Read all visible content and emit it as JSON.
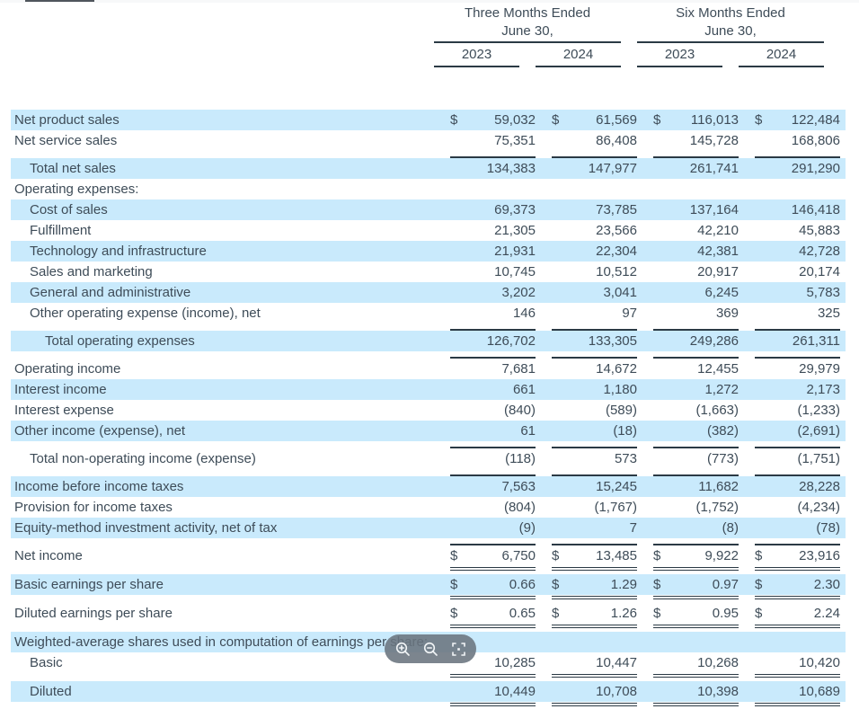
{
  "colors": {
    "row_shade": "#c9eafc",
    "text": "#3e4c58",
    "rule": "#2b3a45",
    "pill_bg": "rgba(106,116,126,0.88)",
    "pill_icon": "#f2f5f7"
  },
  "header": {
    "groups": [
      {
        "line1": "Three Months Ended",
        "line2": "June 30,",
        "years": [
          "2023",
          "2024"
        ]
      },
      {
        "line1": "Six Months Ended",
        "line2": "June 30,",
        "years": [
          "2023",
          "2024"
        ]
      }
    ]
  },
  "zoom_controls": {
    "buttons": [
      {
        "name": "zoom-in"
      },
      {
        "name": "zoom-out"
      },
      {
        "name": "fit-to-width"
      }
    ]
  },
  "table": {
    "rows": [
      {
        "type": "data",
        "label": "Net product sales",
        "indent": 0,
        "shaded": true,
        "dollar": true,
        "values": [
          "59,032",
          "61,569",
          "116,013",
          "122,484"
        ]
      },
      {
        "type": "data",
        "label": "Net service sales",
        "indent": 0,
        "shaded": false,
        "dollar": false,
        "values": [
          "75,351",
          "86,408",
          "145,728",
          "168,806"
        ]
      },
      {
        "type": "rule",
        "style": "single"
      },
      {
        "type": "data",
        "label": "Total net sales",
        "indent": 1,
        "shaded": true,
        "dollar": false,
        "values": [
          "134,383",
          "147,977",
          "261,741",
          "291,290"
        ]
      },
      {
        "type": "data",
        "label": "Operating expenses:",
        "indent": 0,
        "shaded": false,
        "dollar": false,
        "values": [
          "",
          "",
          "",
          ""
        ]
      },
      {
        "type": "data",
        "label": "Cost of sales",
        "indent": 1,
        "shaded": true,
        "dollar": false,
        "values": [
          "69,373",
          "73,785",
          "137,164",
          "146,418"
        ]
      },
      {
        "type": "data",
        "label": "Fulfillment",
        "indent": 1,
        "shaded": false,
        "dollar": false,
        "values": [
          "21,305",
          "23,566",
          "42,210",
          "45,883"
        ]
      },
      {
        "type": "data",
        "label": "Technology and infrastructure",
        "indent": 1,
        "shaded": true,
        "dollar": false,
        "values": [
          "21,931",
          "22,304",
          "42,381",
          "42,728"
        ]
      },
      {
        "type": "data",
        "label": "Sales and marketing",
        "indent": 1,
        "shaded": false,
        "dollar": false,
        "values": [
          "10,745",
          "10,512",
          "20,917",
          "20,174"
        ]
      },
      {
        "type": "data",
        "label": "General and administrative",
        "indent": 1,
        "shaded": true,
        "dollar": false,
        "values": [
          "3,202",
          "3,041",
          "6,245",
          "5,783"
        ]
      },
      {
        "type": "data",
        "label": "Other operating expense (income), net",
        "indent": 1,
        "shaded": false,
        "dollar": false,
        "values": [
          "146",
          "97",
          "369",
          "325"
        ]
      },
      {
        "type": "rule",
        "style": "single"
      },
      {
        "type": "data",
        "label": "Total operating expenses",
        "indent": 2,
        "shaded": true,
        "dollar": false,
        "values": [
          "126,702",
          "133,305",
          "249,286",
          "261,311"
        ]
      },
      {
        "type": "rule",
        "style": "single"
      },
      {
        "type": "data",
        "label": "Operating income",
        "indent": 0,
        "shaded": false,
        "dollar": false,
        "values": [
          "7,681",
          "14,672",
          "12,455",
          "29,979"
        ]
      },
      {
        "type": "data",
        "label": "Interest income",
        "indent": 0,
        "shaded": true,
        "dollar": false,
        "values": [
          "661",
          "1,180",
          "1,272",
          "2,173"
        ]
      },
      {
        "type": "data",
        "label": "Interest expense",
        "indent": 0,
        "shaded": false,
        "dollar": false,
        "values": [
          "(840)",
          "(589)",
          "(1,663)",
          "(1,233)"
        ]
      },
      {
        "type": "data",
        "label": "Other income (expense), net",
        "indent": 0,
        "shaded": true,
        "dollar": false,
        "values": [
          "61",
          "(18)",
          "(382)",
          "(2,691)"
        ]
      },
      {
        "type": "rule",
        "style": "single"
      },
      {
        "type": "data",
        "label": "Total non-operating income (expense)",
        "indent": 1,
        "shaded": false,
        "dollar": false,
        "values": [
          "(118)",
          "573",
          "(773)",
          "(1,751)"
        ]
      },
      {
        "type": "rule",
        "style": "single"
      },
      {
        "type": "data",
        "label": "Income before income taxes",
        "indent": 0,
        "shaded": true,
        "dollar": false,
        "values": [
          "7,563",
          "15,245",
          "11,682",
          "28,228"
        ]
      },
      {
        "type": "data",
        "label": "Provision for income taxes",
        "indent": 0,
        "shaded": false,
        "dollar": false,
        "values": [
          "(804)",
          "(1,767)",
          "(1,752)",
          "(4,234)"
        ]
      },
      {
        "type": "data",
        "label": "Equity-method investment activity, net of tax",
        "indent": 0,
        "shaded": true,
        "dollar": false,
        "values": [
          "(9)",
          "7",
          "(8)",
          "(78)"
        ]
      },
      {
        "type": "rule",
        "style": "single"
      },
      {
        "type": "data",
        "label": "Net income",
        "indent": 0,
        "shaded": false,
        "dollar": true,
        "values": [
          "6,750",
          "13,485",
          "9,922",
          "23,916"
        ]
      },
      {
        "type": "rule",
        "style": "double"
      },
      {
        "type": "data",
        "label": "Basic earnings per share",
        "indent": 0,
        "shaded": true,
        "dollar": true,
        "values": [
          "0.66",
          "1.29",
          "0.97",
          "2.30"
        ]
      },
      {
        "type": "rule",
        "style": "double"
      },
      {
        "type": "data",
        "label": "Diluted earnings per share",
        "indent": 0,
        "shaded": false,
        "dollar": true,
        "values": [
          "0.65",
          "1.26",
          "0.95",
          "2.24"
        ]
      },
      {
        "type": "rule",
        "style": "double"
      },
      {
        "type": "data",
        "label": "Weighted-average shares used in computation of earnings per share:",
        "indent": 0,
        "shaded": true,
        "dollar": false,
        "values": [
          "",
          "",
          "",
          ""
        ]
      },
      {
        "type": "data",
        "label": "Basic",
        "indent": 1,
        "shaded": false,
        "dollar": false,
        "values": [
          "10,285",
          "10,447",
          "10,268",
          "10,420"
        ]
      },
      {
        "type": "rule",
        "style": "double"
      },
      {
        "type": "data",
        "label": "Diluted",
        "indent": 1,
        "shaded": true,
        "dollar": false,
        "values": [
          "10,449",
          "10,708",
          "10,398",
          "10,689"
        ]
      },
      {
        "type": "rule",
        "style": "double"
      }
    ]
  }
}
